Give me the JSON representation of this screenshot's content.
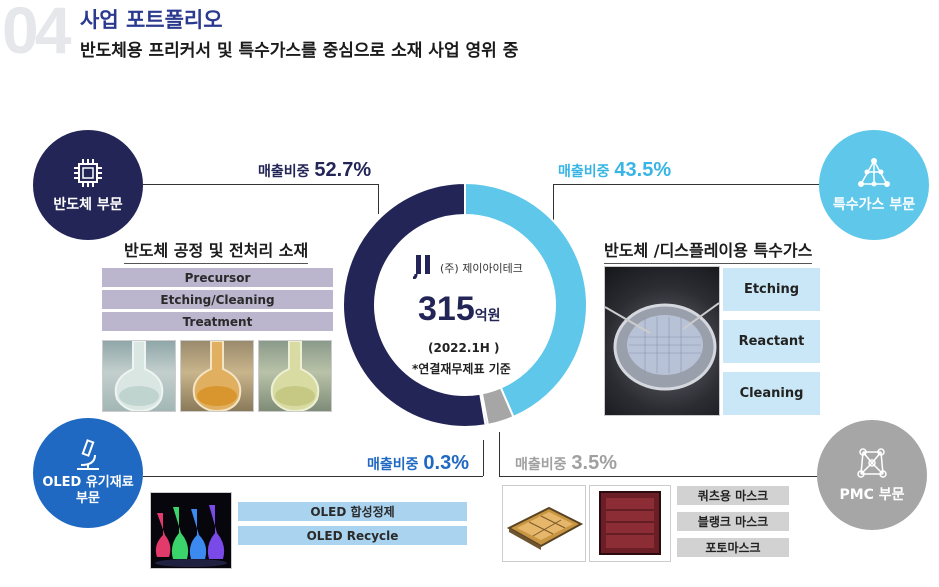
{
  "header": {
    "section_number": "04",
    "title": "사업 포트폴리오",
    "subtitle": "반도체용 프리커서 및 특수가스를 중심으로 소재 사업 영위 중"
  },
  "center": {
    "company_name": "(주) 제이아이테크",
    "revenue_value": "315",
    "revenue_unit": "억원",
    "period": "(2022.1H )",
    "note": "*연결재무제표 기준"
  },
  "colors": {
    "semiconductor": "#232557",
    "special_gas": "#5ec7ea",
    "oled": "#1f69c2",
    "pmc": "#a6a6a6",
    "title_blue": "#2b3a8f"
  },
  "segments": {
    "semiconductor": {
      "circle_label": "반도체 부문",
      "icon": "chip-icon",
      "share_label": "매출비중",
      "share_value": "52.7%",
      "section_label": "반도체 공정 및 전처리 소재",
      "items": [
        "Precursor",
        "Etching/Cleaning",
        "Treatment"
      ]
    },
    "special_gas": {
      "circle_label": "특수가스 부문",
      "icon": "molecule-icon",
      "share_label": "매출비중",
      "share_value": "43.5%",
      "section_label": "반도체 /디스플레이용 특수가스",
      "items": [
        "Etching",
        "Reactant",
        "Cleaning"
      ]
    },
    "oled": {
      "circle_label_1": "OLED 유기재료",
      "circle_label_2": "부문",
      "icon": "microscope-icon",
      "share_label": "매출비중",
      "share_value": "0.3%",
      "items": [
        "OLED 합성정제",
        "OLED Recycle"
      ]
    },
    "pmc": {
      "circle_label": "PMC 부문",
      "icon": "network-icon",
      "share_label": "매출비중",
      "share_value": "3.5%",
      "items": [
        "쿼츠용 마스크",
        "블랭크 마스크",
        "포토마스크"
      ]
    }
  },
  "chart_data": {
    "type": "pie",
    "title": "",
    "categories": [
      "반도체 부문",
      "특수가스 부문",
      "PMC 부문",
      "OLED 유기재료 부문"
    ],
    "values": [
      52.7,
      43.5,
      3.5,
      0.3
    ],
    "colors": [
      "#232557",
      "#5ec7ea",
      "#a6a6a6",
      "#1f69c2"
    ],
    "donut": true
  }
}
